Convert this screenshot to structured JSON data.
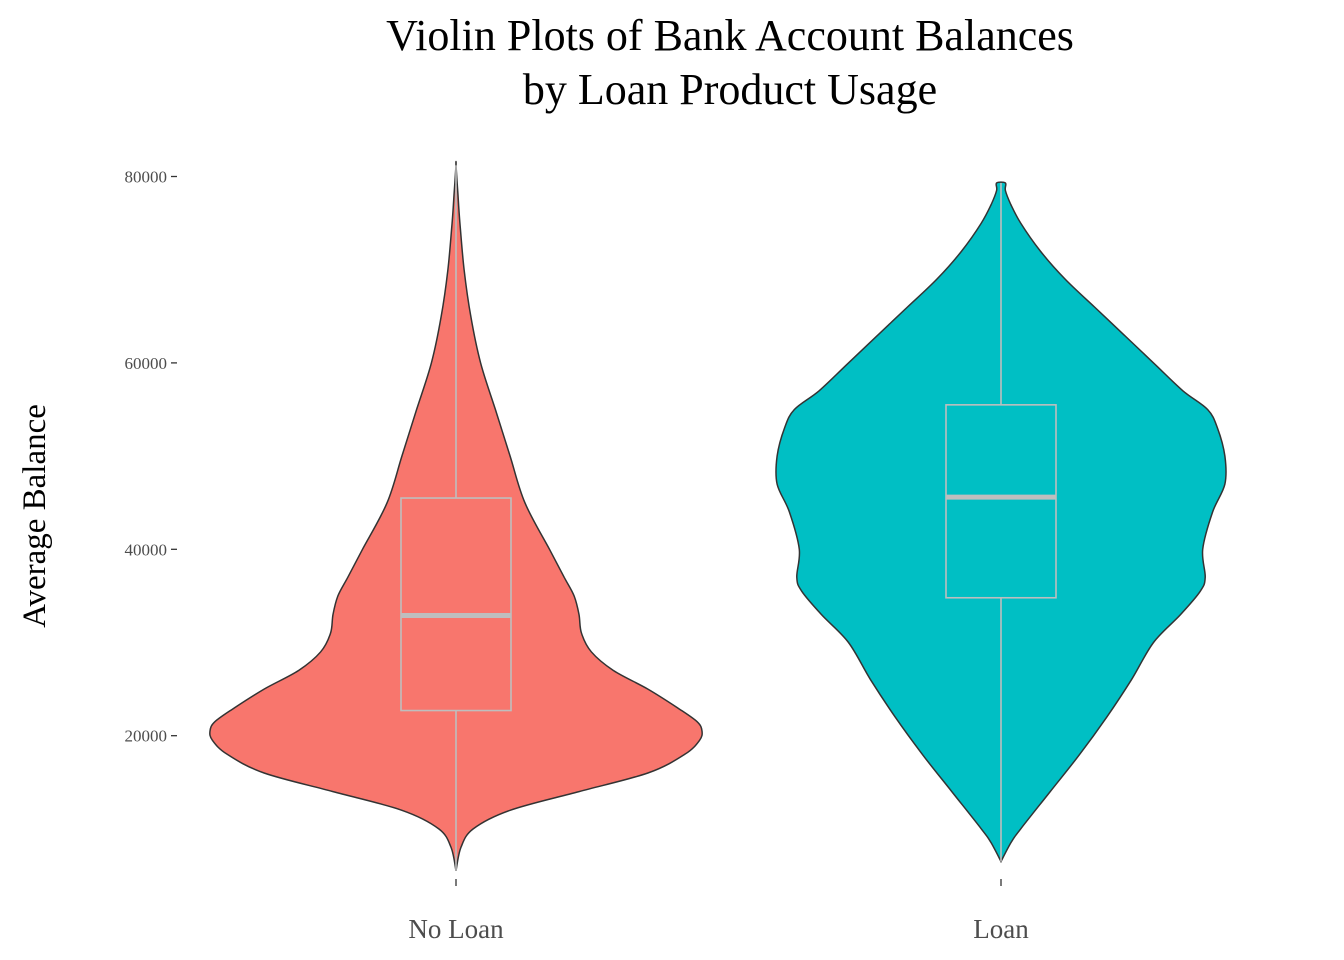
{
  "chart_data": {
    "type": "violin",
    "title_lines": [
      "Violin Plots of Bank Account Balances",
      "by Loan Product Usage"
    ],
    "xlabel": "",
    "ylabel": "Average Balance",
    "ylim": [
      5000,
      82000
    ],
    "yticks": [
      20000,
      40000,
      60000,
      80000
    ],
    "ytick_labels": [
      "20000",
      "40000",
      "60000",
      "80000"
    ],
    "grid": false,
    "legend": "none",
    "categories": [
      "No Loan",
      "Loan"
    ],
    "series": [
      {
        "category": "No Loan",
        "color": "#F8766D",
        "box": {
          "min": 5500,
          "q1": 22700,
          "median": 32900,
          "q3": 45500,
          "max": 81200
        },
        "density": [
          [
            5500,
            0.0
          ],
          [
            8000,
            0.02
          ],
          [
            10000,
            0.07
          ],
          [
            12000,
            0.22
          ],
          [
            14000,
            0.5
          ],
          [
            16000,
            0.78
          ],
          [
            18000,
            0.93
          ],
          [
            19500,
            0.99
          ],
          [
            20500,
            1.0
          ],
          [
            21500,
            0.98
          ],
          [
            23000,
            0.9
          ],
          [
            25000,
            0.78
          ],
          [
            27000,
            0.64
          ],
          [
            29000,
            0.55
          ],
          [
            31000,
            0.51
          ],
          [
            33000,
            0.5
          ],
          [
            35000,
            0.48
          ],
          [
            37000,
            0.44
          ],
          [
            40000,
            0.38
          ],
          [
            45000,
            0.28
          ],
          [
            50000,
            0.22
          ],
          [
            55000,
            0.16
          ],
          [
            60000,
            0.1
          ],
          [
            65000,
            0.06
          ],
          [
            70000,
            0.033
          ],
          [
            75000,
            0.016
          ],
          [
            78000,
            0.008
          ],
          [
            81200,
            0.0
          ]
        ]
      },
      {
        "category": "Loan",
        "color": "#00BFC4",
        "box": {
          "min": 6500,
          "q1": 34800,
          "median": 45600,
          "q3": 55500,
          "max": 79300
        },
        "density": [
          [
            6500,
            0.0
          ],
          [
            8500,
            0.04
          ],
          [
            10000,
            0.08
          ],
          [
            14000,
            0.2
          ],
          [
            18000,
            0.32
          ],
          [
            22000,
            0.43
          ],
          [
            26000,
            0.53
          ],
          [
            30000,
            0.62
          ],
          [
            33000,
            0.73
          ],
          [
            35500,
            0.81
          ],
          [
            37000,
            0.83
          ],
          [
            40000,
            0.82
          ],
          [
            44000,
            0.86
          ],
          [
            47000,
            0.91
          ],
          [
            50000,
            0.91
          ],
          [
            53000,
            0.88
          ],
          [
            55000,
            0.84
          ],
          [
            57000,
            0.74
          ],
          [
            60000,
            0.62
          ],
          [
            63000,
            0.5
          ],
          [
            66000,
            0.38
          ],
          [
            69000,
            0.26
          ],
          [
            72000,
            0.16
          ],
          [
            75000,
            0.08
          ],
          [
            77000,
            0.04
          ],
          [
            78500,
            0.018
          ],
          [
            79300,
            0.018
          ]
        ]
      }
    ]
  }
}
